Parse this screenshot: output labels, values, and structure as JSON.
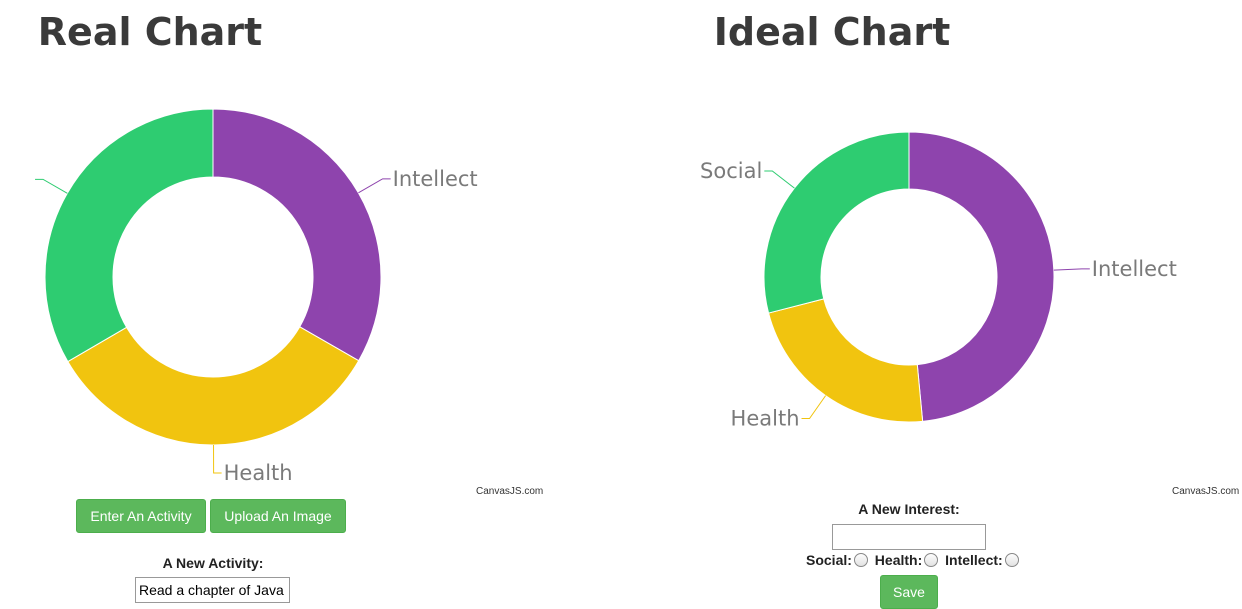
{
  "left": {
    "title": "Real Chart",
    "credit": "CanvasJS.com",
    "buttons": {
      "enter_activity": "Enter An Activity",
      "upload_image": "Upload An Image"
    },
    "form": {
      "label": "A New Activity:",
      "input_value": "Read a chapter of Java"
    }
  },
  "right": {
    "title": "Ideal Chart",
    "credit": "CanvasJS.com",
    "form": {
      "label": "A New Interest:",
      "input_value": "",
      "radios": [
        {
          "label": "Social:"
        },
        {
          "label": "Health:"
        },
        {
          "label": "Intellect:"
        }
      ],
      "save_label": "Save"
    }
  },
  "colors": {
    "intellect": "#8e44ad",
    "health": "#f1c40f",
    "social": "#2ecc71",
    "button": "#5cb85c"
  },
  "chart_data": [
    {
      "type": "pie",
      "title": "Real Chart",
      "categories": [
        "Intellect",
        "Health",
        ""
      ],
      "values": [
        33.3,
        33.3,
        33.4
      ],
      "colors": [
        "#8e44ad",
        "#f1c40f",
        "#2ecc71"
      ]
    },
    {
      "type": "pie",
      "title": "Ideal Chart",
      "categories": [
        "Intellect",
        "Health",
        "Social"
      ],
      "values": [
        48.5,
        22.5,
        29
      ],
      "colors": [
        "#8e44ad",
        "#f1c40f",
        "#2ecc71"
      ]
    }
  ]
}
